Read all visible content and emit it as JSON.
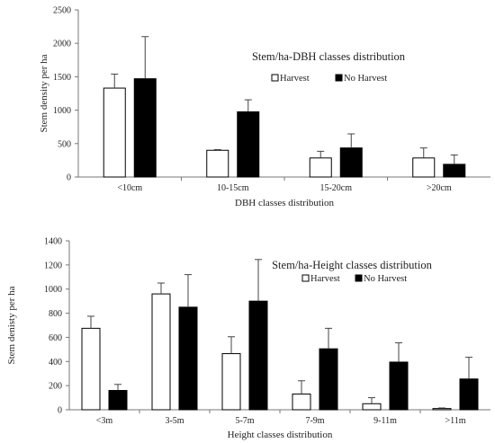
{
  "chart_data": [
    {
      "type": "bar",
      "title": "Stem/ha-DBH classes distribution",
      "xlabel": "DBH classes distribution",
      "ylabel": "Stem density per ha",
      "ylim": [
        0,
        2500
      ],
      "yticks": [
        0,
        500,
        1000,
        1500,
        2000,
        2500
      ],
      "grid": false,
      "legend": "top-right",
      "categories": [
        "<10cm",
        "10-15cm",
        "15-20cm",
        ">20cm"
      ],
      "series": [
        {
          "name": "Harvest",
          "color": "#ffffff",
          "values": [
            1330,
            400,
            285,
            285
          ],
          "errors": [
            210,
            10,
            100,
            150
          ]
        },
        {
          "name": "No Harvest",
          "color": "#000000",
          "values": [
            1470,
            975,
            435,
            190
          ],
          "errors": [
            630,
            180,
            210,
            140
          ]
        }
      ]
    },
    {
      "type": "bar",
      "title": "Stem/ha-Height classes distribution",
      "xlabel": "Height classes distribution",
      "ylabel": "Stem denisty per ha",
      "ylim": [
        0,
        1400
      ],
      "yticks": [
        0,
        200,
        400,
        600,
        800,
        1000,
        1200,
        1400
      ],
      "grid": false,
      "legend": "top-right",
      "categories": [
        "<3m",
        "3-5m",
        "5-7m",
        "7-9m",
        "9-11m",
        ">11m"
      ],
      "series": [
        {
          "name": "Harvest",
          "color": "#ffffff",
          "values": [
            675,
            960,
            465,
            130,
            50,
            10
          ],
          "errors": [
            100,
            90,
            140,
            110,
            50,
            5
          ]
        },
        {
          "name": "No Harvest",
          "color": "#000000",
          "values": [
            160,
            850,
            900,
            505,
            395,
            255
          ],
          "errors": [
            50,
            270,
            345,
            170,
            160,
            180
          ]
        }
      ]
    }
  ]
}
